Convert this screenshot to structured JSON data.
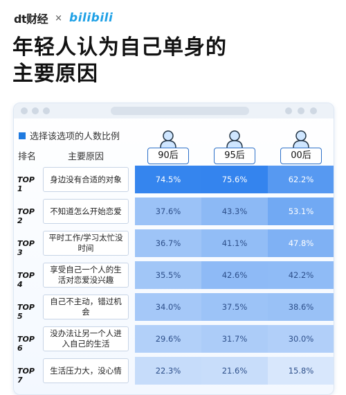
{
  "header": {
    "brand": "财经",
    "brand_prefix": "dt",
    "separator": "×",
    "partner": "bilibili"
  },
  "title": {
    "line1": "年轻人认为自己单身的",
    "line2": "主要原因"
  },
  "chart_data": {
    "type": "table",
    "legend": "选择该选项的人数比例",
    "rank_header": "排名",
    "reason_header": "主要原因",
    "series_names": [
      "90后",
      "95后",
      "00后"
    ],
    "rows": [
      {
        "rank": "TOP 1",
        "reason": "身边没有合适的对象",
        "values": [
          "74.5%",
          "75.6%",
          "62.2%"
        ]
      },
      {
        "rank": "TOP 2",
        "reason": "不知道怎么开始恋爱",
        "values": [
          "37.6%",
          "43.3%",
          "53.1%"
        ]
      },
      {
        "rank": "TOP 3",
        "reason": "平时工作/学习太忙没时间",
        "values": [
          "36.7%",
          "41.1%",
          "47.8%"
        ]
      },
      {
        "rank": "TOP 4",
        "reason": "享受自己一个人的生活对恋爱没兴趣",
        "values": [
          "35.5%",
          "42.6%",
          "42.2%"
        ]
      },
      {
        "rank": "TOP 5",
        "reason": "自己不主动，错过机会",
        "values": [
          "34.0%",
          "37.5%",
          "38.6%"
        ]
      },
      {
        "rank": "TOP 6",
        "reason": "没办法让另一个人进入自己的生活",
        "values": [
          "29.6%",
          "31.7%",
          "30.0%"
        ]
      },
      {
        "rank": "TOP 7",
        "reason": "生活压力大，没心情",
        "values": [
          "22.3%",
          "21.6%",
          "15.8%"
        ]
      }
    ]
  },
  "colors": {
    "accent": "#1f7ae0",
    "dark_cell": "#3d8af0",
    "light_cell": "#cfe0fb"
  }
}
